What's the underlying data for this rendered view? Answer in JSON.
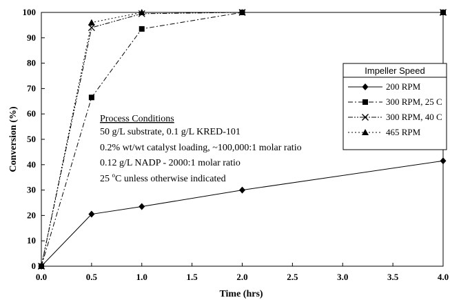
{
  "chart_data": {
    "type": "line",
    "xlabel": "Time (hrs)",
    "ylabel": "Conversion (%)",
    "xlim": [
      0,
      4
    ],
    "ylim": [
      0,
      100
    ],
    "x_ticks": [
      "0.0",
      "0.5",
      "1.0",
      "1.5",
      "2.0",
      "2.5",
      "3.0",
      "3.5",
      "4.0"
    ],
    "y_ticks": [
      "0",
      "10",
      "20",
      "30",
      "40",
      "50",
      "60",
      "70",
      "80",
      "90",
      "100"
    ],
    "grid": false,
    "legend": {
      "title": "Impeller Speed",
      "placement": "right"
    },
    "series": [
      {
        "name": "200 RPM",
        "marker": "diamond",
        "dash": "solid",
        "x": [
          0,
          0.5,
          1,
          2,
          4
        ],
        "y": [
          0,
          20.5,
          23.5,
          30,
          41.5
        ]
      },
      {
        "name": "300 RPM, 25 C",
        "marker": "square",
        "dash": "dashdot",
        "x": [
          0,
          0.5,
          1,
          2,
          4
        ],
        "y": [
          0,
          66.5,
          93.5,
          100,
          100
        ]
      },
      {
        "name": "300 RPM, 40 C",
        "marker": "x",
        "dash": "dashdotdot",
        "x": [
          0,
          0.5,
          1,
          2,
          4
        ],
        "y": [
          0,
          94,
          99.5,
          100,
          100
        ]
      },
      {
        "name": "465 RPM",
        "marker": "triangle",
        "dash": "dotted",
        "x": [
          0,
          0.5,
          1,
          2,
          4
        ],
        "y": [
          0,
          96,
          100,
          100,
          100
        ]
      }
    ],
    "annotation": {
      "heading": "Process Conditions",
      "lines": [
        "50 g/L substrate, 0.1 g/L KRED-101",
        "0.2% wt/wt catalyst loading, ~100,000:1 molar ratio",
        "0.12 g/L NADP - 2000:1 molar ratio"
      ],
      "temp_value": "25 ",
      "temp_degree": "o",
      "temp_rest": "C unless otherwise indicated"
    }
  }
}
